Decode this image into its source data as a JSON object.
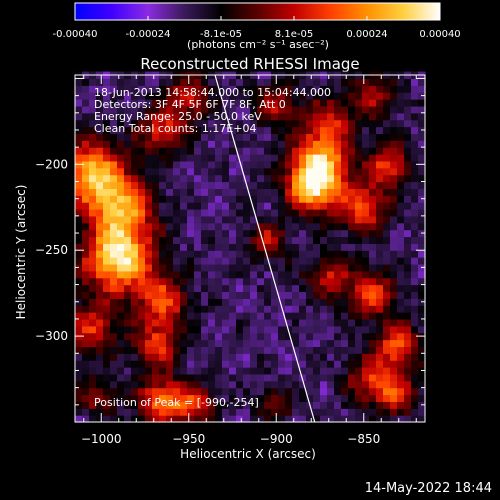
{
  "chart_data": {
    "type": "heatmap",
    "title": "Reconstructed RHESSI Image",
    "xlabel": "Heliocentric X (arcsec)",
    "ylabel": "Heliocentric Y (arcsec)",
    "xlim": [
      -1015,
      -815
    ],
    "ylim": [
      -350,
      -148
    ],
    "xticks": [
      -1000,
      -950,
      -900,
      -850
    ],
    "yticks": [
      -200,
      -250,
      -300
    ],
    "colorbar": {
      "label": "(photons cm⁻² s⁻¹ asec⁻²)",
      "range": [
        -0.0004,
        0.0004
      ],
      "ticks": [
        "-0.00040",
        "-0.00024",
        "-8.1e-05",
        "8.1e-05",
        "0.00024",
        "0.00040"
      ],
      "colors": [
        "#0000ff",
        "#4000ff",
        "#8a2be2",
        "#3a1a5a",
        "#000000",
        "#5a0000",
        "#c00000",
        "#ff4000",
        "#ff9000",
        "#ffd040",
        "#ffffff"
      ]
    },
    "annotations": [
      "18-Jun-2013 14:58:44.000 to 15:04:44.000",
      "Detectors: 3F 4F 5F 6F 7F 8F, Att 0",
      "Energy Range: 25.0 - 50.0 keV",
      "Clean     Total counts: 1.17E+04"
    ],
    "peak_label": "Position of Peak = [-990,-254]",
    "peak": [
      -990,
      -254
    ],
    "limb_line": [
      [
        -935,
        -148
      ],
      [
        -878,
        -350
      ]
    ],
    "blobs": [
      {
        "x": -990,
        "y": -254,
        "intensity": 1.0,
        "sigma": 14
      },
      {
        "x": -1005,
        "y": -205,
        "intensity": 0.85,
        "sigma": 13
      },
      {
        "x": -988,
        "y": -225,
        "intensity": 0.7,
        "sigma": 12
      },
      {
        "x": -965,
        "y": -280,
        "intensity": 0.6,
        "sigma": 10
      },
      {
        "x": -968,
        "y": -305,
        "intensity": 0.55,
        "sigma": 9
      },
      {
        "x": -965,
        "y": -180,
        "intensity": 0.5,
        "sigma": 10
      },
      {
        "x": -1005,
        "y": -295,
        "intensity": 0.5,
        "sigma": 11
      },
      {
        "x": -950,
        "y": -160,
        "intensity": 0.45,
        "sigma": 9
      },
      {
        "x": -965,
        "y": -338,
        "intensity": 0.7,
        "sigma": 10
      },
      {
        "x": -945,
        "y": -340,
        "intensity": 0.45,
        "sigma": 8
      },
      {
        "x": -1002,
        "y": -335,
        "intensity": 0.35,
        "sigma": 8
      },
      {
        "x": -900,
        "y": -165,
        "intensity": 0.4,
        "sigma": 9
      },
      {
        "x": -870,
        "y": -175,
        "intensity": 0.45,
        "sigma": 10
      },
      {
        "x": -845,
        "y": -160,
        "intensity": 0.4,
        "sigma": 9
      },
      {
        "x": -875,
        "y": -200,
        "intensity": 0.85,
        "sigma": 12
      },
      {
        "x": -880,
        "y": -215,
        "intensity": 0.7,
        "sigma": 10
      },
      {
        "x": -850,
        "y": -225,
        "intensity": 0.6,
        "sigma": 10
      },
      {
        "x": -835,
        "y": -200,
        "intensity": 0.55,
        "sigma": 9
      },
      {
        "x": -905,
        "y": -245,
        "intensity": 0.45,
        "sigma": 8
      },
      {
        "x": -870,
        "y": -265,
        "intensity": 0.45,
        "sigma": 9
      },
      {
        "x": -845,
        "y": -275,
        "intensity": 0.55,
        "sigma": 10
      },
      {
        "x": -830,
        "y": -305,
        "intensity": 0.6,
        "sigma": 9
      },
      {
        "x": -845,
        "y": -325,
        "intensity": 0.55,
        "sigma": 10
      },
      {
        "x": -830,
        "y": -335,
        "intensity": 0.45,
        "sigma": 8
      },
      {
        "x": -900,
        "y": -340,
        "intensity": 0.35,
        "sigma": 7
      }
    ]
  },
  "footer": {
    "date": "14-May-2022 18:44"
  }
}
